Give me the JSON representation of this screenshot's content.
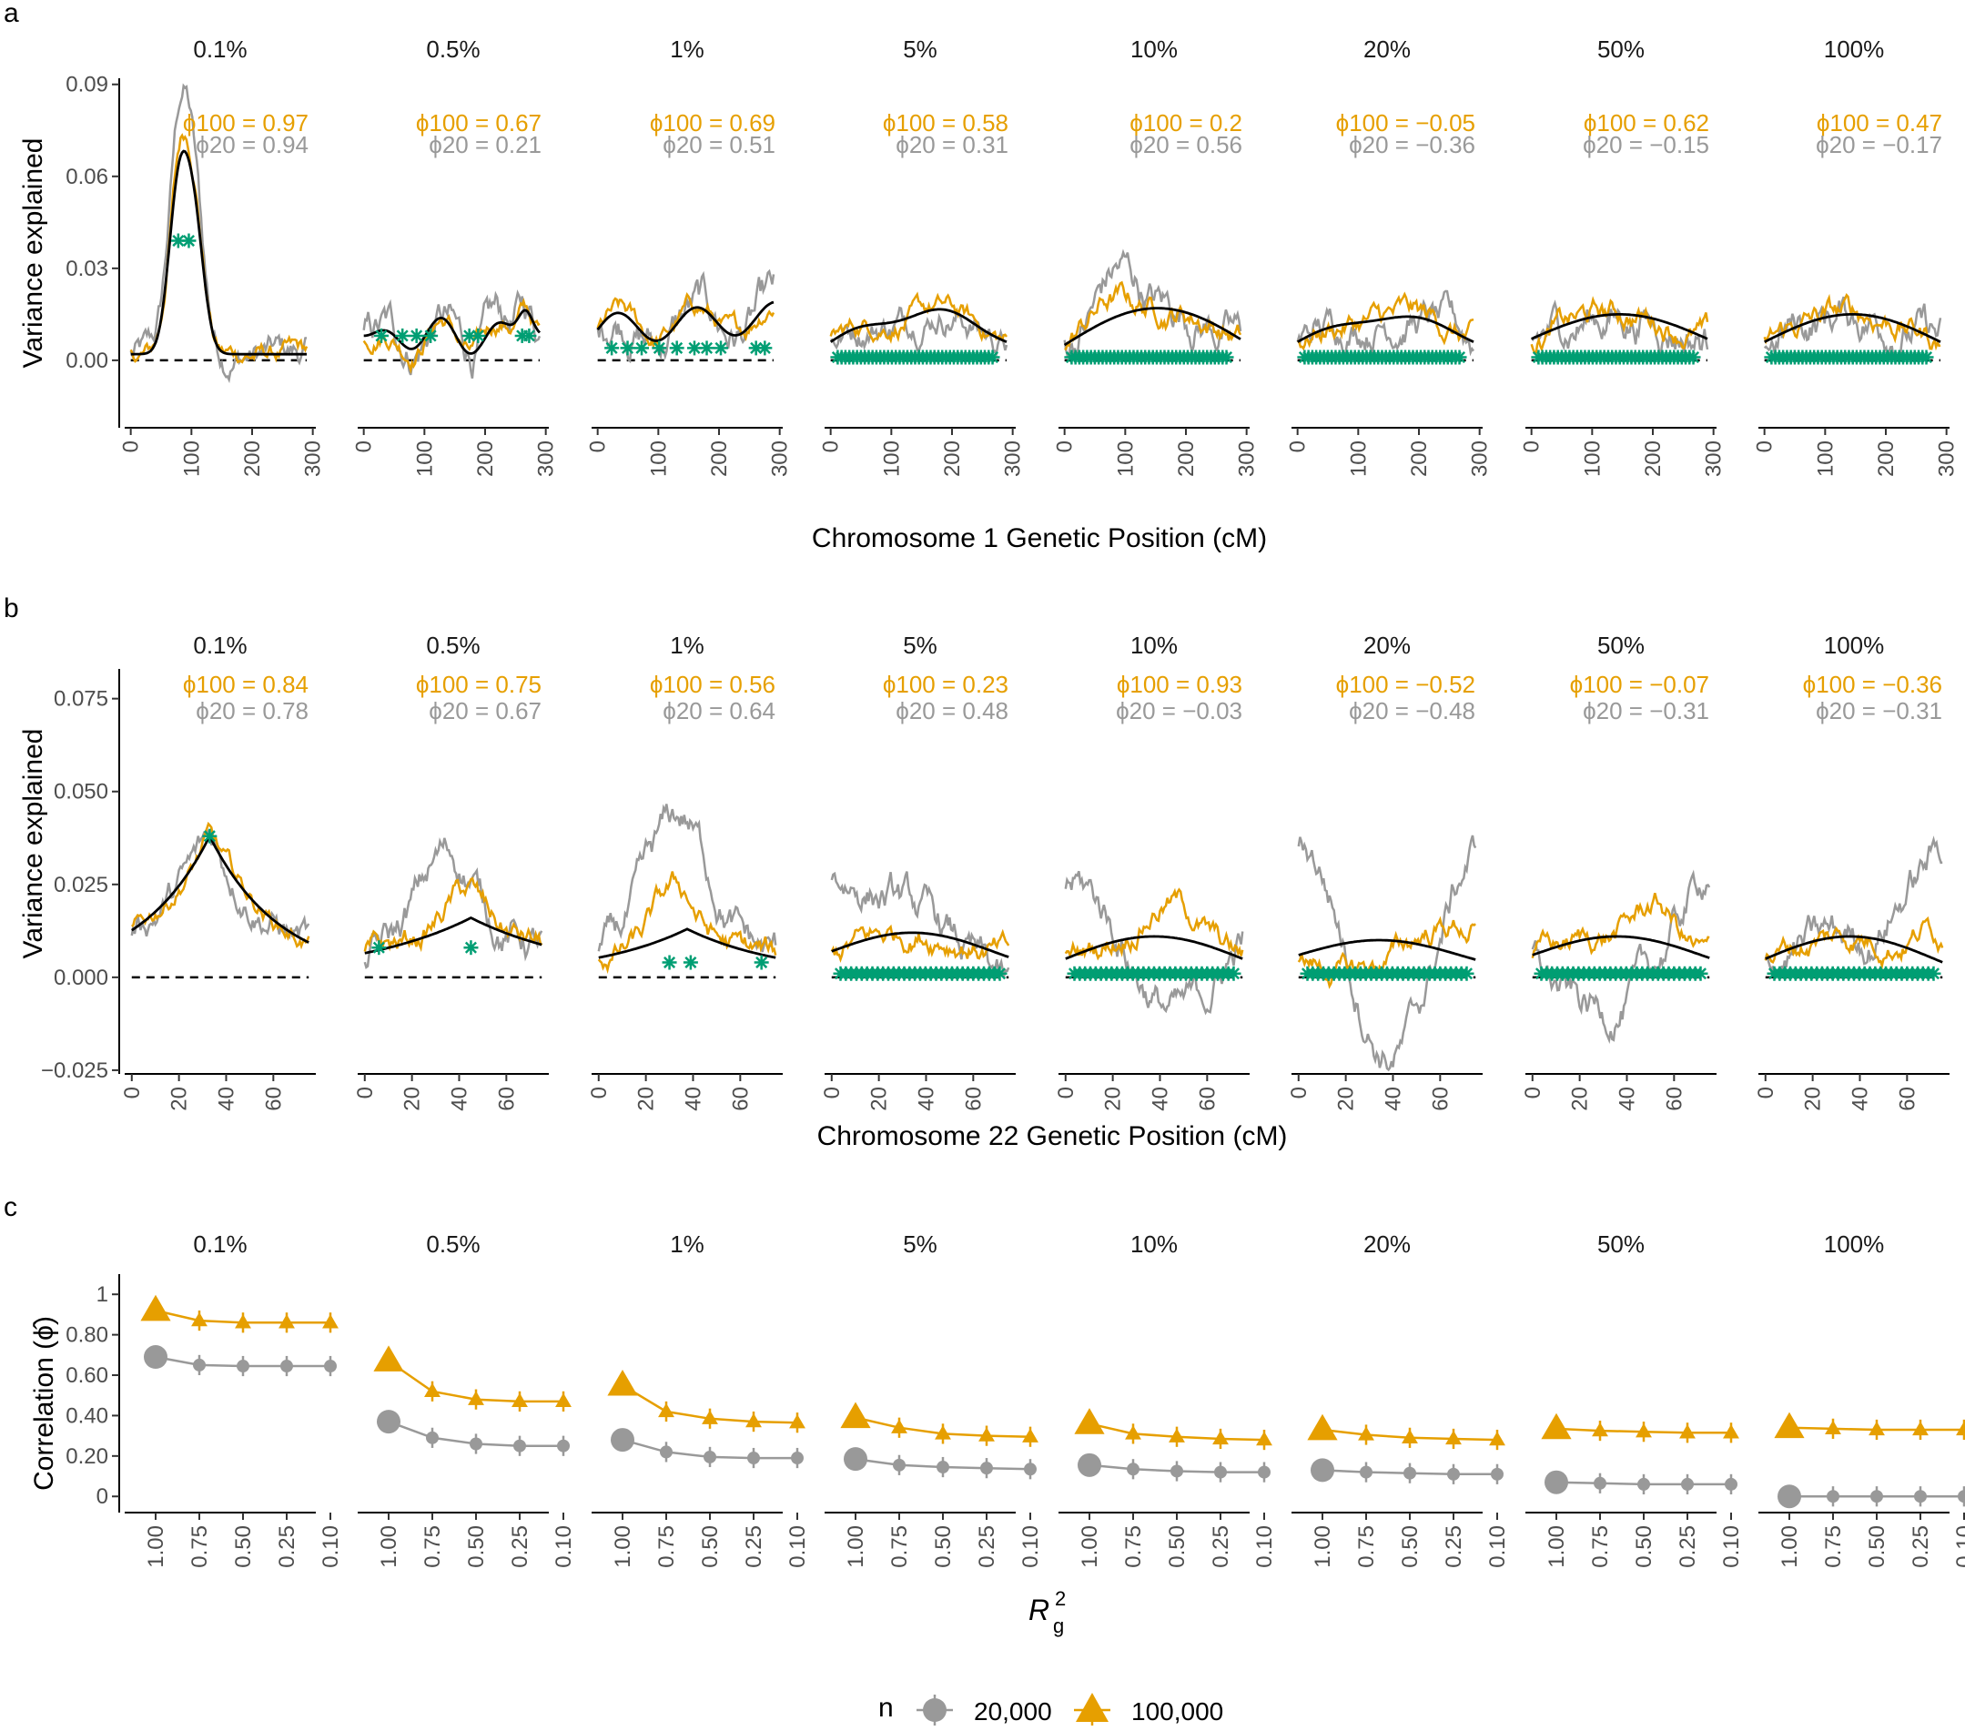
{
  "figure": {
    "panel_labels": [
      "a",
      "b",
      "c"
    ],
    "facets": [
      "0.1%",
      "0.5%",
      "1%",
      "5%",
      "10%",
      "20%",
      "50%",
      "100%"
    ],
    "colors": {
      "n100": "#E69F00",
      "n20": "#999999",
      "truth": "#000000",
      "sig": "#009E73"
    }
  },
  "chart_data": [
    {
      "id": "a",
      "type": "line",
      "ylabel": "Variance explained",
      "xlabel": "Chromosome 1 Genetic Position (cM)",
      "ylim": [
        -0.022,
        0.092
      ],
      "yticks": [
        0.0,
        0.03,
        0.06,
        0.09
      ],
      "ytick_labels": [
        "0.00",
        "0.03",
        "0.06",
        "0.09"
      ],
      "xlim": [
        -10,
        305
      ],
      "xticks": [
        0,
        100,
        200,
        300
      ],
      "xtick_labels": [
        "0",
        "100",
        "200",
        "300"
      ],
      "phi_label_100": "ϕ100 = ",
      "phi_label_20": "ϕ20 = ",
      "phi100": [
        "0.97",
        "0.67",
        "0.69",
        "0.58",
        "0.2",
        "−0.05",
        "0.62",
        "0.47"
      ],
      "phi20": [
        "0.94",
        "0.21",
        "0.51",
        "0.31",
        "0.56",
        "−0.36",
        "−0.15",
        "−0.17"
      ]
    },
    {
      "id": "b",
      "type": "line",
      "ylabel": "Variance explained",
      "xlabel": "Chromosome 22 Genetic Position (cM)",
      "ylim": [
        -0.026,
        0.083
      ],
      "yticks": [
        -0.025,
        0.0,
        0.025,
        0.05,
        0.075
      ],
      "ytick_labels": [
        "−0.025",
        "0.000",
        "0.025",
        "0.050",
        "0.075"
      ],
      "xlim": [
        -3,
        78
      ],
      "xticks": [
        0,
        20,
        40,
        60
      ],
      "xtick_labels": [
        "0",
        "20",
        "40",
        "60"
      ],
      "phi_label_100": "ϕ100 = ",
      "phi_label_20": "ϕ20 = ",
      "phi100": [
        "0.84",
        "0.75",
        "0.56",
        "0.23",
        "0.93",
        "−0.52",
        "−0.07",
        "−0.36"
      ],
      "phi20": [
        "0.78",
        "0.67",
        "0.64",
        "0.48",
        "−0.03",
        "−0.48",
        "−0.31",
        "−0.31"
      ]
    },
    {
      "id": "c",
      "type": "line",
      "ylabel": "Correlation (ϕ̂)",
      "xlabel": "Rg2",
      "ylim": [
        -0.08,
        1.1
      ],
      "yticks": [
        0,
        0.2,
        0.4,
        0.6,
        0.8,
        1
      ],
      "ytick_labels": [
        "0",
        "0.20",
        "0.40",
        "0.60",
        "0.80",
        "1"
      ],
      "x_categories": [
        "1.00",
        "0.75",
        "0.50",
        "0.25",
        "0.10"
      ],
      "series": [
        {
          "name": "20,000",
          "values": [
            [
              0.69,
              0.65,
              0.645,
              0.645,
              0.645
            ],
            [
              0.37,
              0.29,
              0.26,
              0.25,
              0.25
            ],
            [
              0.28,
              0.22,
              0.195,
              0.19,
              0.19
            ],
            [
              0.185,
              0.155,
              0.145,
              0.14,
              0.135
            ],
            [
              0.155,
              0.135,
              0.125,
              0.12,
              0.12
            ],
            [
              0.13,
              0.12,
              0.115,
              0.11,
              0.11
            ],
            [
              0.07,
              0.065,
              0.06,
              0.06,
              0.06
            ],
            [
              0.0,
              0.0,
              0.0,
              0.0,
              0.0
            ]
          ],
          "error": [
            0.03,
            0.05,
            0.05,
            0.05,
            0.05
          ]
        },
        {
          "name": "100,000",
          "values": [
            [
              0.92,
              0.87,
              0.86,
              0.86,
              0.86
            ],
            [
              0.67,
              0.52,
              0.48,
              0.47,
              0.47
            ],
            [
              0.55,
              0.42,
              0.385,
              0.37,
              0.365
            ],
            [
              0.39,
              0.34,
              0.31,
              0.3,
              0.295
            ],
            [
              0.36,
              0.31,
              0.295,
              0.285,
              0.28
            ],
            [
              0.33,
              0.305,
              0.29,
              0.285,
              0.28
            ],
            [
              0.335,
              0.325,
              0.32,
              0.315,
              0.315
            ],
            [
              0.34,
              0.335,
              0.33,
              0.33,
              0.33
            ]
          ],
          "error": [
            0.03,
            0.05,
            0.05,
            0.05,
            0.05
          ]
        }
      ],
      "legend": {
        "title": "n",
        "entries": [
          "20,000",
          "100,000"
        ],
        "placement": "bottom-center"
      }
    }
  ]
}
